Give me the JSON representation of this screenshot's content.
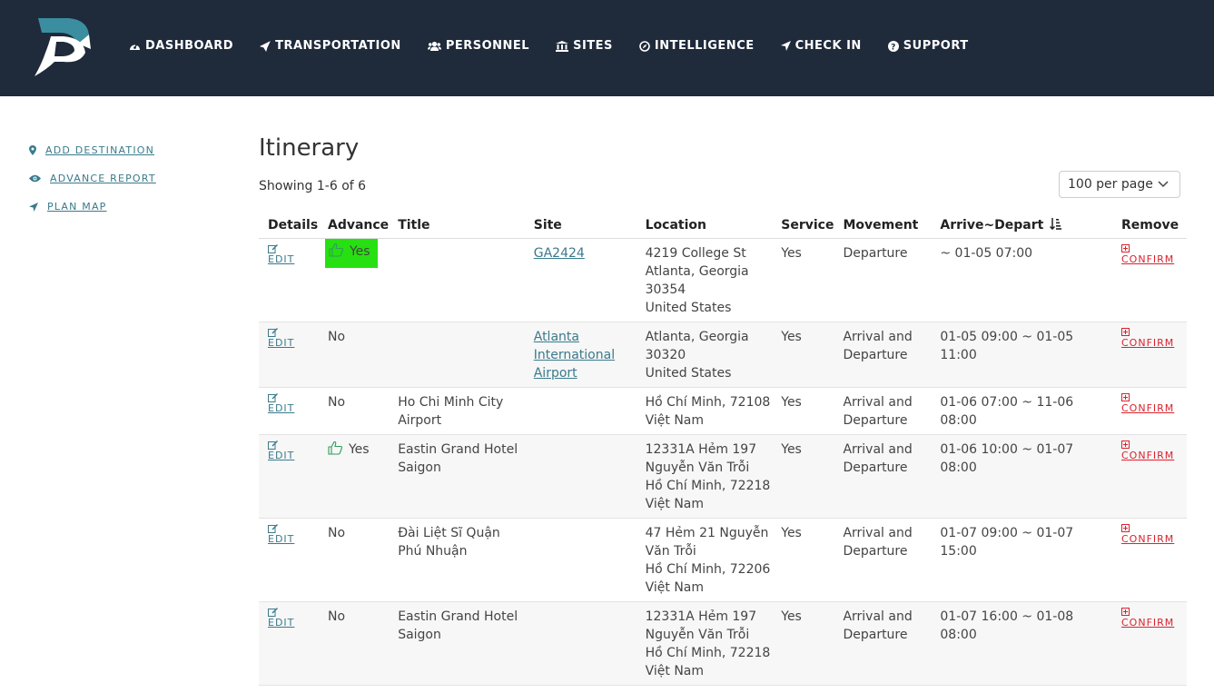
{
  "nav": {
    "items": [
      {
        "label": "DASHBOARD",
        "icon": "dashboard-icon"
      },
      {
        "label": "TRANSPORTATION",
        "icon": "plane-icon"
      },
      {
        "label": "PERSONNEL",
        "icon": "users-icon"
      },
      {
        "label": "SITES",
        "icon": "bank-icon"
      },
      {
        "label": "INTELLIGENCE",
        "icon": "compass-icon"
      },
      {
        "label": "CHECK IN",
        "icon": "location-arrow-icon"
      },
      {
        "label": "SUPPORT",
        "icon": "question-circle-icon"
      }
    ]
  },
  "sidebar": {
    "items": [
      {
        "label": "ADD DESTINATION",
        "icon": "map-marker-icon"
      },
      {
        "label": "ADVANCE REPORT",
        "icon": "eye-icon"
      },
      {
        "label": "PLAN MAP",
        "icon": "location-arrow-icon"
      }
    ]
  },
  "main": {
    "title": "Itinerary",
    "showing": "Showing 1-6 of 6",
    "per_page": "100 per page"
  },
  "table": {
    "headers": {
      "details": "Details",
      "advance": "Advance",
      "title": "Title",
      "site": "Site",
      "location": "Location",
      "service": "Service",
      "movement": "Movement",
      "arrive_depart": "Arrive~Depart",
      "remove": "Remove"
    },
    "edit_label": "EDIT",
    "confirm_label": "CONFIRM",
    "rows": [
      {
        "advance": "Yes",
        "title": "",
        "site": "GA2424",
        "location_lines": [
          "4219 College St",
          "Atlanta, Georgia",
          "30354",
          "United States"
        ],
        "service": "Yes",
        "movement": "Departure",
        "time": "~ 01-05 07:00"
      },
      {
        "advance": "No",
        "title": "",
        "site": "Atlanta International Airport",
        "location_lines": [
          "Atlanta, Georgia",
          "30320",
          "United States"
        ],
        "service": "Yes",
        "movement": "Arrival and Departure",
        "time": "01-05 09:00 ~ 01-05 11:00"
      },
      {
        "advance": "No",
        "title": "Ho Chi Minh City Airport",
        "site": "",
        "location_lines": [
          "Hồ Chí Minh, 72108",
          "Việt Nam"
        ],
        "service": "Yes",
        "movement": "Arrival and Departure",
        "time": "01-06 07:00 ~ 11-06 08:00"
      },
      {
        "advance": "Yes",
        "title": "Eastin Grand Hotel Saigon",
        "site": "",
        "location_lines": [
          "12331A Hẻm 197",
          "Nguyễn Văn Trỗi",
          "Hồ Chí Minh, 72218",
          "Việt Nam"
        ],
        "service": "Yes",
        "movement": "Arrival and Departure",
        "time": "01-06 10:00 ~ 01-07 08:00"
      },
      {
        "advance": "No",
        "title": "Đài Liệt Sĩ Quận Phú Nhuận",
        "site": "",
        "location_lines": [
          "47 Hẻm 21 Nguyễn",
          "Văn Trỗi",
          "Hồ Chí Minh, 72206",
          "Việt Nam"
        ],
        "service": "Yes",
        "movement": "Arrival and Departure",
        "time": "01-07 09:00 ~ 01-07 15:00"
      },
      {
        "advance": "No",
        "title": "Eastin Grand Hotel Saigon",
        "site": "",
        "location_lines": [
          "12331A Hẻm 197",
          "Nguyễn Văn Trỗi",
          "Hồ Chí Minh, 72218",
          "Việt Nam"
        ],
        "service": "Yes",
        "movement": "Arrival and Departure",
        "time": "01-07 16:00 ~ 01-08 08:00"
      }
    ]
  },
  "colors": {
    "header_bg": "#1f2a3b",
    "link": "#3a7a8c",
    "danger": "#d9232e",
    "highlight": "#27e011",
    "thumb": "#2e9e5a",
    "logo_top": "#3a8ea0",
    "logo_bottom": "#ffffff"
  }
}
